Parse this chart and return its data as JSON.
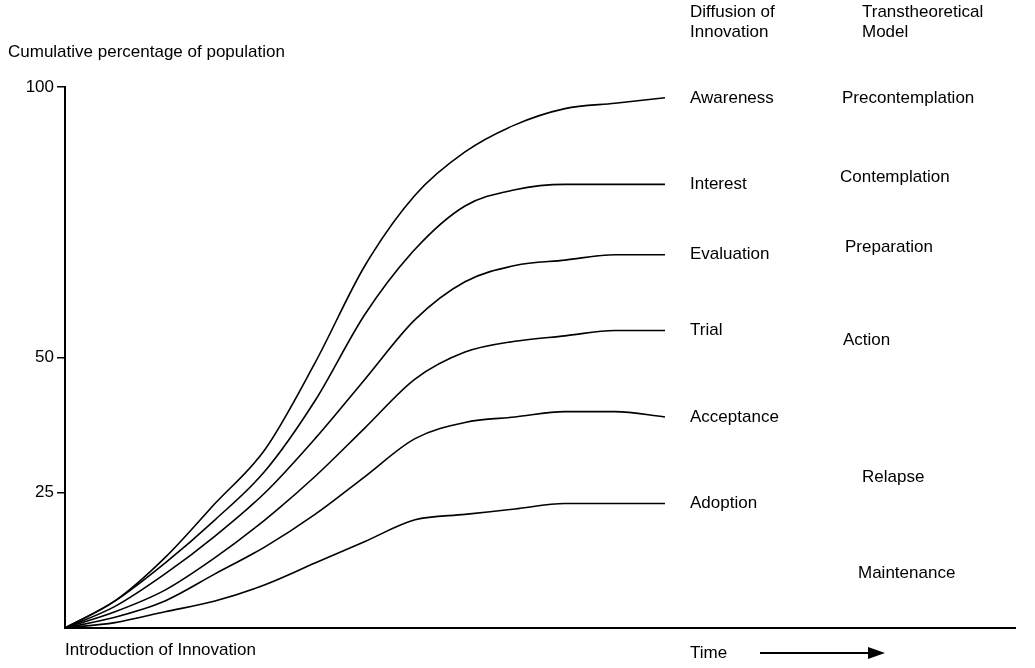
{
  "chart_data": {
    "type": "line",
    "ylabel": "Cumulative percentage of population",
    "xlabel": "Time",
    "legend_title": "Diffusion of Innovation",
    "categories": [
      null,
      null,
      null,
      null,
      null,
      null,
      null,
      null,
      null,
      null,
      null,
      null,
      null,
      null,
      null,
      null,
      null,
      null,
      null,
      null
    ],
    "ylim": [
      0,
      100
    ],
    "yticks": [
      25,
      50,
      100
    ],
    "grid": false,
    "legend": false,
    "marker": "none",
    "line_style": "solid",
    "series": [
      {
        "name": "Awareness",
        "color": "#000000",
        "values": [
          0,
          5,
          13,
          23,
          33,
          49,
          67,
          80,
          88,
          93,
          96,
          97,
          98,
          null,
          null,
          null,
          null,
          null,
          null,
          null
        ]
      },
      {
        "name": "Interest",
        "color": "#000000",
        "values": [
          0,
          5,
          12,
          20,
          29,
          42,
          58,
          70,
          78,
          81,
          82,
          82,
          82,
          null,
          null,
          null,
          null,
          null,
          null,
          null
        ]
      },
      {
        "name": "Evaluation",
        "color": "#000000",
        "values": [
          0,
          4,
          10,
          17,
          25,
          35,
          46,
          57,
          64,
          67,
          68,
          69,
          69,
          null,
          null,
          null,
          null,
          null,
          null,
          null
        ]
      },
      {
        "name": "Trial",
        "color": "#000000",
        "values": [
          0,
          3,
          7,
          13,
          20,
          28,
          37,
          46,
          51,
          53,
          54,
          55,
          55,
          null,
          null,
          null,
          null,
          null,
          null,
          null
        ]
      },
      {
        "name": "Acceptance",
        "color": "#000000",
        "values": [
          0,
          2,
          5,
          10,
          15,
          21,
          28,
          35,
          38,
          39,
          40,
          40,
          39,
          null,
          null,
          null,
          null,
          null,
          null,
          null
        ]
      },
      {
        "name": "Adoption",
        "color": "#000000",
        "values": [
          0,
          1,
          3,
          5,
          8,
          12,
          16,
          20,
          21,
          22,
          23,
          23,
          23,
          null,
          null,
          null,
          null,
          null,
          null,
          null
        ]
      }
    ],
    "annotations": [
      "Transtheoretical Model",
      "Precontemplation",
      "Contemplation",
      "Preparation",
      "Action",
      "Relapse",
      "Maintenance",
      "Introduction of Innovation"
    ]
  }
}
